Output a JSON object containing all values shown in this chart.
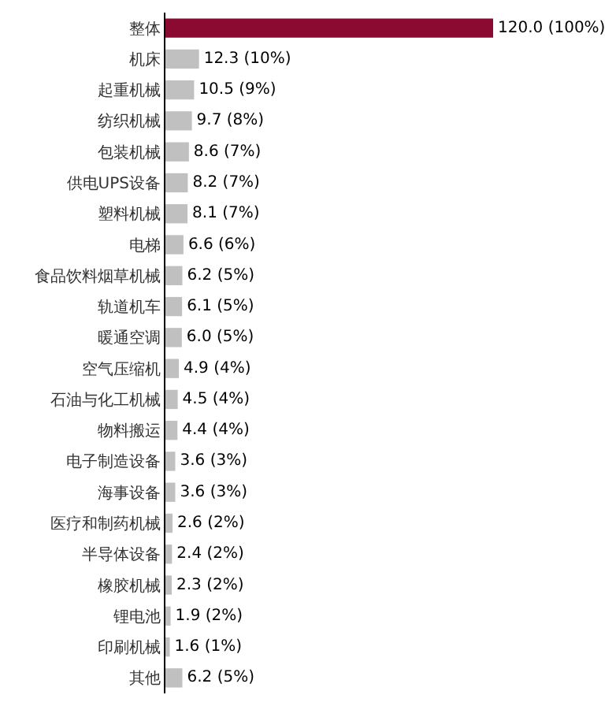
{
  "chart_data": {
    "type": "bar",
    "orientation": "horizontal",
    "categories": [
      "整体",
      "机床",
      "起重机械",
      "纺织机械",
      "包装机械",
      "供电UPS设备",
      "塑料机械",
      "电梯",
      "食品饮料烟草机械",
      "轨道机车",
      "暖通空调",
      "空气压缩机",
      "石油与化工机械",
      "物料搬运",
      "电子制造设备",
      "海事设备",
      "医疗和制药机械",
      "半导体设备",
      "橡胶机械",
      "锂电池",
      "印刷机械",
      "其他"
    ],
    "values": [
      120.0,
      12.3,
      10.5,
      9.7,
      8.6,
      8.2,
      8.1,
      6.6,
      6.2,
      6.1,
      6.0,
      4.9,
      4.5,
      4.4,
      3.6,
      3.6,
      2.6,
      2.4,
      2.3,
      1.9,
      1.6,
      6.2
    ],
    "value_labels": [
      "120.0 (100%)",
      "12.3 (10%)",
      "10.5 (9%)",
      "9.7 (8%)",
      "8.6 (7%)",
      "8.2 (7%)",
      "8.1 (7%)",
      "6.6 (6%)",
      "6.2 (5%)",
      "6.1 (5%)",
      "6.0 (5%)",
      "4.9 (4%)",
      "4.5 (4%)",
      "4.4 (4%)",
      "3.6 (3%)",
      "3.6 (3%)",
      "2.6 (2%)",
      "2.4 (2%)",
      "2.3 (2%)",
      "1.9 (2%)",
      "1.6 (1%)",
      "6.2 (5%)"
    ],
    "colors": [
      "#8b0a32",
      "#c0c0c0",
      "#c0c0c0",
      "#c0c0c0",
      "#c0c0c0",
      "#c0c0c0",
      "#c0c0c0",
      "#c0c0c0",
      "#c0c0c0",
      "#c0c0c0",
      "#c0c0c0",
      "#c0c0c0",
      "#c0c0c0",
      "#c0c0c0",
      "#c0c0c0",
      "#c0c0c0",
      "#c0c0c0",
      "#c0c0c0",
      "#c0c0c0",
      "#c0c0c0",
      "#c0c0c0",
      "#c0c0c0"
    ],
    "xlim": [
      0,
      120
    ],
    "tick_labels": "y"
  }
}
